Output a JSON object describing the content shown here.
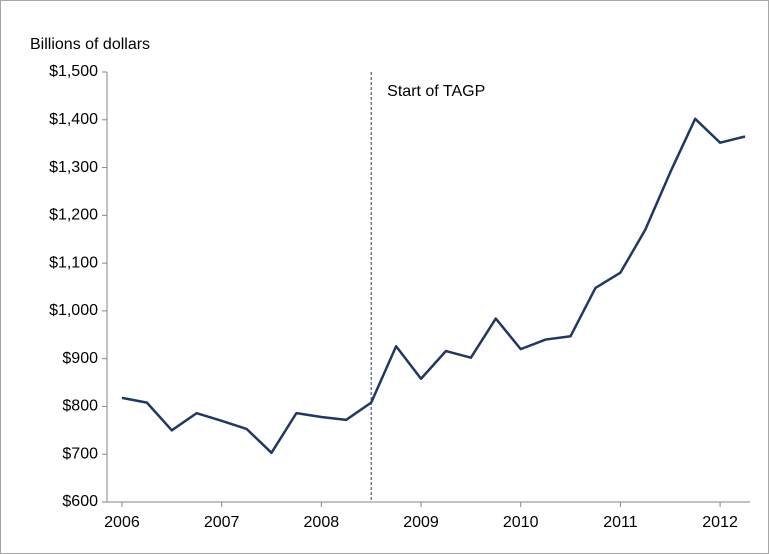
{
  "chart_data": {
    "type": "line",
    "y_label": "Billions of dollars",
    "x": [
      2006,
      2006.25,
      2006.5,
      2006.75,
      2007,
      2007.25,
      2007.5,
      2007.75,
      2008,
      2008.25,
      2008.5,
      2008.75,
      2009,
      2009.25,
      2009.5,
      2009.75,
      2010,
      2010.25,
      2010.5,
      2010.75,
      2011,
      2011.25,
      2011.5,
      2011.75,
      2012,
      2012.25
    ],
    "series": [
      {
        "color": "#203864",
        "values": [
          818,
          808,
          750,
          786,
          770,
          753,
          703,
          786,
          778,
          772,
          808,
          926,
          858,
          916,
          902,
          984,
          920,
          940,
          947,
          1048,
          1080,
          1170,
          1290,
          1402,
          1352,
          1365
        ]
      }
    ],
    "xlim": [
      2005.85,
      2012.3
    ],
    "xticks": [
      2006,
      2007,
      2008,
      2009,
      2010,
      2011,
      2012
    ],
    "ylim": [
      600,
      1500
    ],
    "yticks": [
      {
        "value": 600,
        "label": "$600"
      },
      {
        "value": 700,
        "label": "$700"
      },
      {
        "value": 800,
        "label": "$800"
      },
      {
        "value": 900,
        "label": "$900"
      },
      {
        "value": 1000,
        "label": "$1,000"
      },
      {
        "value": 1100,
        "label": "$1,100"
      },
      {
        "value": 1200,
        "label": "$1,200"
      },
      {
        "value": 1300,
        "label": "$1,300"
      },
      {
        "value": 1400,
        "label": "$1,400"
      },
      {
        "value": 1500,
        "label": "$1,500"
      }
    ],
    "annotations": [
      {
        "text": "Start of TAGP",
        "x": 2008.5
      }
    ],
    "grid": false
  }
}
